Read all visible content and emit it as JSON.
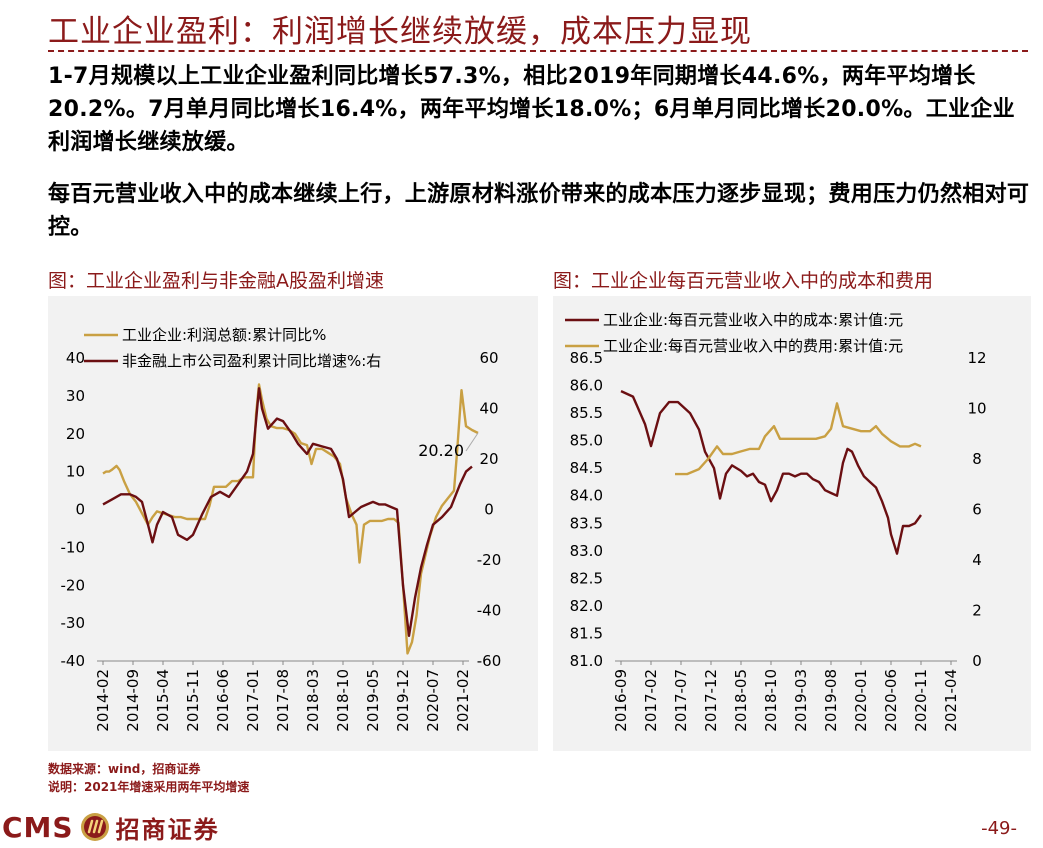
{
  "header": {
    "title": "工业企业盈利：利润增长继续放缓，成本压力显现"
  },
  "paragraphs": {
    "p1": "1-7月规模以上工业企业盈利同比增长57.3%，相比2019年同期增长44.6%，两年平均增长20.2%。7月单月同比增长16.4%，两年平均增长18.0%；6月单月同比增长20.0%。工业企业利润增长继续放缓。",
    "p2": "每百元营业收入中的成本继续上行，上游原材料涨价带来的成本压力逐步显现；费用压力仍然相对可控。"
  },
  "figures": {
    "left_title": "图：工业企业盈利与非金融A股盈利增速",
    "right_title": "图：工业企业每百元营业收入中的成本和费用"
  },
  "footer": {
    "source": "数据来源：wind，招商证券",
    "note": "说明：2021年增速采用两年平均增速",
    "logo_text": "CMS",
    "logo_zh": "招商证券",
    "page_number": "-49-"
  },
  "colors": {
    "gold": "#c9a043",
    "maroon": "#6b0f12",
    "brand": "#8b1a1a"
  },
  "chart_data": [
    {
      "type": "line",
      "categories": [
        "2014-02",
        "2014-09",
        "2015-04",
        "2015-11",
        "2016-06",
        "2017-01",
        "2017-08",
        "2018-03",
        "2018-10",
        "2019-05",
        "2019-12",
        "2020-07",
        "2021-02"
      ],
      "ylim": [
        -40,
        40
      ],
      "y2lim": [
        -60,
        60
      ],
      "yticks": [
        "40",
        "30",
        "20",
        "10",
        "0",
        "-10",
        "-20",
        "-30",
        "-40"
      ],
      "y2ticks": [
        "60",
        "40",
        "20",
        "0",
        "-20",
        "-40",
        "-60"
      ],
      "annotation": "20.20",
      "series": [
        {
          "name": "工业企业:利润总额:累计同比%",
          "axis": "left",
          "color": "#c9a043",
          "points": [
            [
              0,
              9.5
            ],
            [
              0.1,
              10
            ],
            [
              0.2,
              10
            ],
            [
              0.3,
              10.5
            ],
            [
              0.45,
              11.5
            ],
            [
              0.55,
              10.5
            ],
            [
              0.7,
              7.5
            ],
            [
              0.9,
              4
            ],
            [
              1.1,
              2
            ],
            [
              1.3,
              -1
            ],
            [
              1.5,
              -4
            ],
            [
              1.65,
              -2
            ],
            [
              1.8,
              -0.5
            ],
            [
              2,
              -1
            ],
            [
              2.2,
              -1.5
            ],
            [
              2.4,
              -2
            ],
            [
              2.6,
              -2
            ],
            [
              2.8,
              -2.5
            ],
            [
              3,
              -2.5
            ],
            [
              3.2,
              -2.5
            ],
            [
              3.4,
              -2.5
            ],
            [
              3.55,
              1
            ],
            [
              3.7,
              6
            ],
            [
              3.9,
              6
            ],
            [
              4.1,
              6
            ],
            [
              4.3,
              7.5
            ],
            [
              4.5,
              7.5
            ],
            [
              4.7,
              8.5
            ],
            [
              4.9,
              8.5
            ],
            [
              5.0,
              8.5
            ],
            [
              5.1,
              25
            ],
            [
              5.2,
              33
            ],
            [
              5.3,
              29
            ],
            [
              5.45,
              24
            ],
            [
              5.6,
              22
            ],
            [
              5.8,
              21.5
            ],
            [
              6,
              21.5
            ],
            [
              6.2,
              21
            ],
            [
              6.4,
              20
            ],
            [
              6.6,
              17.5
            ],
            [
              6.8,
              17
            ],
            [
              6.95,
              12
            ],
            [
              7.1,
              16
            ],
            [
              7.3,
              16
            ],
            [
              7.5,
              15
            ],
            [
              7.7,
              14
            ],
            [
              7.9,
              12
            ],
            [
              8.1,
              3
            ],
            [
              8.3,
              -1.5
            ],
            [
              8.45,
              -4
            ],
            [
              8.55,
              -14
            ],
            [
              8.7,
              -4
            ],
            [
              8.9,
              -3
            ],
            [
              9.1,
              -3
            ],
            [
              9.3,
              -3
            ],
            [
              9.5,
              -2.5
            ],
            [
              9.7,
              -2.5
            ],
            [
              9.85,
              -3.5
            ],
            [
              10,
              -20
            ],
            [
              10.15,
              -38
            ],
            [
              10.3,
              -35
            ],
            [
              10.45,
              -28
            ],
            [
              10.6,
              -17
            ],
            [
              10.75,
              -12
            ],
            [
              10.9,
              -7
            ],
            [
              11.1,
              -2
            ],
            [
              11.3,
              1
            ],
            [
              11.5,
              3
            ],
            [
              11.7,
              5
            ],
            [
              11.8,
              15
            ],
            [
              11.95,
              31.5
            ],
            [
              12.1,
              22
            ],
            [
              12.3,
              21
            ],
            [
              12.5,
              20.2
            ]
          ]
        },
        {
          "name": "非金融上市公司盈利累计同比增速%:右",
          "axis": "right",
          "color": "#6b0f12",
          "points": [
            [
              0,
              2
            ],
            [
              0.3,
              4
            ],
            [
              0.6,
              6
            ],
            [
              0.9,
              6
            ],
            [
              1.1,
              5
            ],
            [
              1.3,
              3
            ],
            [
              1.5,
              -6
            ],
            [
              1.65,
              -13
            ],
            [
              1.8,
              -6
            ],
            [
              2,
              -1
            ],
            [
              2.3,
              -3
            ],
            [
              2.5,
              -10
            ],
            [
              2.8,
              -12
            ],
            [
              3,
              -10
            ],
            [
              3.3,
              -2
            ],
            [
              3.6,
              5
            ],
            [
              3.9,
              7
            ],
            [
              4.2,
              5
            ],
            [
              4.5,
              10
            ],
            [
              4.8,
              15
            ],
            [
              5,
              22
            ],
            [
              5.1,
              35
            ],
            [
              5.2,
              48
            ],
            [
              5.3,
              40
            ],
            [
              5.5,
              32
            ],
            [
              5.8,
              36
            ],
            [
              6,
              35
            ],
            [
              6.3,
              30
            ],
            [
              6.5,
              26
            ],
            [
              6.8,
              22
            ],
            [
              7,
              26
            ],
            [
              7.3,
              25
            ],
            [
              7.6,
              24
            ],
            [
              7.8,
              20
            ],
            [
              8,
              12
            ],
            [
              8.2,
              -3
            ],
            [
              8.4,
              -1
            ],
            [
              8.6,
              1
            ],
            [
              8.8,
              2
            ],
            [
              9,
              3
            ],
            [
              9.2,
              2
            ],
            [
              9.4,
              2
            ],
            [
              9.6,
              1
            ],
            [
              9.8,
              0
            ],
            [
              10,
              -30
            ],
            [
              10.2,
              -50
            ],
            [
              10.4,
              -35
            ],
            [
              10.6,
              -23
            ],
            [
              10.8,
              -14
            ],
            [
              11,
              -6
            ],
            [
              11.3,
              -3
            ],
            [
              11.6,
              1
            ],
            [
              11.9,
              10
            ],
            [
              12.1,
              15
            ],
            [
              12.3,
              17
            ]
          ]
        }
      ]
    },
    {
      "type": "line",
      "categories": [
        "2016-09",
        "2017-02",
        "2017-07",
        "2017-12",
        "2018-05",
        "2018-10",
        "2019-03",
        "2019-08",
        "2020-01",
        "2020-06",
        "2020-11",
        "2021-04"
      ],
      "ylim": [
        81.0,
        86.5
      ],
      "y2lim": [
        0,
        12
      ],
      "yticks": [
        "86.5",
        "86.0",
        "85.5",
        "85.0",
        "84.5",
        "84.0",
        "83.5",
        "83.0",
        "82.5",
        "82.0",
        "81.5",
        "81.0"
      ],
      "y2ticks": [
        "12",
        "10",
        "8",
        "6",
        "4",
        "2",
        "0"
      ],
      "series": [
        {
          "name": "工业企业:每百元营业收入中的成本:累计值:元",
          "axis": "left",
          "color": "#6b0f12",
          "points": [
            [
              0,
              85.9
            ],
            [
              0.4,
              85.8
            ],
            [
              0.8,
              85.3
            ],
            [
              1,
              84.9
            ],
            [
              1.3,
              85.5
            ],
            [
              1.6,
              85.7
            ],
            [
              1.9,
              85.7
            ],
            [
              2.1,
              85.6
            ],
            [
              2.3,
              85.5
            ],
            [
              2.6,
              85.2
            ],
            [
              2.8,
              84.8
            ],
            [
              3.1,
              84.5
            ],
            [
              3.3,
              83.95
            ],
            [
              3.5,
              84.4
            ],
            [
              3.7,
              84.55
            ],
            [
              4,
              84.45
            ],
            [
              4.2,
              84.35
            ],
            [
              4.4,
              84.4
            ],
            [
              4.6,
              84.25
            ],
            [
              4.8,
              84.2
            ],
            [
              5,
              83.9
            ],
            [
              5.2,
              84.1
            ],
            [
              5.4,
              84.4
            ],
            [
              5.6,
              84.4
            ],
            [
              5.8,
              84.35
            ],
            [
              6,
              84.4
            ],
            [
              6.2,
              84.4
            ],
            [
              6.4,
              84.3
            ],
            [
              6.6,
              84.25
            ],
            [
              6.8,
              84.1
            ],
            [
              7.0,
              84.05
            ],
            [
              7.2,
              84.0
            ],
            [
              7.4,
              84.6
            ],
            [
              7.55,
              84.85
            ],
            [
              7.7,
              84.8
            ],
            [
              7.9,
              84.55
            ],
            [
              8.1,
              84.35
            ],
            [
              8.3,
              84.25
            ],
            [
              8.5,
              84.15
            ],
            [
              8.7,
              83.9
            ],
            [
              8.9,
              83.6
            ],
            [
              9.0,
              83.3
            ],
            [
              9.2,
              82.95
            ],
            [
              9.4,
              83.45
            ],
            [
              9.6,
              83.45
            ],
            [
              9.8,
              83.5
            ],
            [
              10.0,
              83.65
            ]
          ]
        },
        {
          "name": "工业企业:每百元营业收入中的费用:累计值:元",
          "axis": "right",
          "color": "#c9a043",
          "points": [
            [
              1.8,
              7.4
            ],
            [
              2.2,
              7.4
            ],
            [
              2.6,
              7.6
            ],
            [
              2.9,
              8.0
            ],
            [
              3.2,
              8.5
            ],
            [
              3.4,
              8.2
            ],
            [
              3.7,
              8.2
            ],
            [
              4,
              8.3
            ],
            [
              4.3,
              8.4
            ],
            [
              4.6,
              8.4
            ],
            [
              4.8,
              8.9
            ],
            [
              5.1,
              9.3
            ],
            [
              5.3,
              8.8
            ],
            [
              5.6,
              8.8
            ],
            [
              5.9,
              8.8
            ],
            [
              6.2,
              8.8
            ],
            [
              6.5,
              8.8
            ],
            [
              6.8,
              8.9
            ],
            [
              7,
              9.2
            ],
            [
              7.2,
              10.2
            ],
            [
              7.4,
              9.3
            ],
            [
              7.7,
              9.2
            ],
            [
              8,
              9.1
            ],
            [
              8.3,
              9.1
            ],
            [
              8.5,
              9.3
            ],
            [
              8.7,
              9.0
            ],
            [
              9,
              8.7
            ],
            [
              9.3,
              8.5
            ],
            [
              9.6,
              8.5
            ],
            [
              9.8,
              8.6
            ],
            [
              10.0,
              8.5
            ]
          ]
        }
      ]
    }
  ]
}
